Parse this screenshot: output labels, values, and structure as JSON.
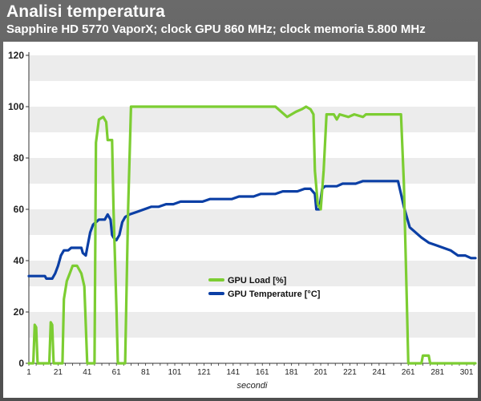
{
  "header": {
    "title": "Analisi temperatura",
    "subtitle": "Sapphire HD 5770 VaporX; clock GPU 860 MHz; clock memoria 5.800 MHz"
  },
  "colors": {
    "gpu_load": "#7ccd32",
    "gpu_temp": "#0b3fa5",
    "band": "#ececec",
    "frame": "#565656"
  },
  "chart_data": {
    "type": "line",
    "title": "Analisi temperatura",
    "subtitle": "Sapphire HD 5770 VaporX; clock GPU 860 MHz; clock memoria 5.800 MHz",
    "xlabel": "secondi",
    "ylabel": "",
    "xlim": [
      1,
      307
    ],
    "ylim": [
      0,
      120
    ],
    "x_ticks": [
      "1",
      "21",
      "41",
      "61",
      "81",
      "101",
      "121",
      "141",
      "161",
      "181",
      "201",
      "221",
      "241",
      "261",
      "281",
      "301"
    ],
    "y_ticks": [
      "0",
      "20",
      "40",
      "60",
      "80",
      "100",
      "120"
    ],
    "grid": "alternating horizontal bands",
    "legend_position": "center",
    "series": [
      {
        "name": "GPU Load [%]",
        "color": "#7ccd32",
        "points": [
          [
            1,
            0
          ],
          [
            4,
            0
          ],
          [
            5,
            15
          ],
          [
            6,
            14
          ],
          [
            7,
            0
          ],
          [
            15,
            0
          ],
          [
            16,
            16
          ],
          [
            17,
            15
          ],
          [
            18,
            0
          ],
          [
            21,
            0
          ],
          [
            24,
            0
          ],
          [
            25,
            25
          ],
          [
            27,
            32
          ],
          [
            29,
            35
          ],
          [
            31,
            38
          ],
          [
            34,
            38
          ],
          [
            37,
            35
          ],
          [
            39,
            30
          ],
          [
            40,
            15
          ],
          [
            41,
            0
          ],
          [
            46,
            0
          ],
          [
            47,
            86
          ],
          [
            49,
            95
          ],
          [
            52,
            96
          ],
          [
            54,
            94
          ],
          [
            55,
            87
          ],
          [
            58,
            87
          ],
          [
            59,
            60
          ],
          [
            61,
            22
          ],
          [
            62,
            0
          ],
          [
            67,
            0
          ],
          [
            69,
            60
          ],
          [
            71,
            100
          ],
          [
            110,
            100
          ],
          [
            170,
            100
          ],
          [
            176,
            97
          ],
          [
            178,
            96
          ],
          [
            184,
            98
          ],
          [
            188,
            99
          ],
          [
            191,
            100
          ],
          [
            194,
            99
          ],
          [
            196,
            97
          ],
          [
            197,
            75
          ],
          [
            199,
            62
          ],
          [
            201,
            60
          ],
          [
            203,
            75
          ],
          [
            205,
            97
          ],
          [
            210,
            97
          ],
          [
            212,
            95
          ],
          [
            214,
            97
          ],
          [
            220,
            96
          ],
          [
            224,
            97
          ],
          [
            230,
            96
          ],
          [
            232,
            97
          ],
          [
            256,
            97
          ],
          [
            258,
            70
          ],
          [
            260,
            25
          ],
          [
            261,
            0
          ],
          [
            270,
            0
          ],
          [
            271,
            3
          ],
          [
            275,
            3
          ],
          [
            276,
            0
          ],
          [
            307,
            0
          ]
        ]
      },
      {
        "name": "GPU Temperature [°C]",
        "color": "#0b3fa5",
        "points": [
          [
            1,
            34
          ],
          [
            12,
            34
          ],
          [
            13,
            33
          ],
          [
            17,
            33
          ],
          [
            19,
            35
          ],
          [
            21,
            38
          ],
          [
            23,
            42
          ],
          [
            25,
            44
          ],
          [
            28,
            44
          ],
          [
            30,
            45
          ],
          [
            33,
            45
          ],
          [
            37,
            45
          ],
          [
            38,
            43
          ],
          [
            40,
            42
          ],
          [
            41,
            45
          ],
          [
            43,
            51
          ],
          [
            45,
            54
          ],
          [
            47,
            55
          ],
          [
            49,
            56
          ],
          [
            53,
            56
          ],
          [
            55,
            58
          ],
          [
            57,
            56
          ],
          [
            58,
            50
          ],
          [
            59,
            49
          ],
          [
            61,
            48
          ],
          [
            63,
            50
          ],
          [
            65,
            55
          ],
          [
            67,
            57
          ],
          [
            70,
            58
          ],
          [
            75,
            59
          ],
          [
            80,
            60
          ],
          [
            85,
            61
          ],
          [
            90,
            61
          ],
          [
            95,
            62
          ],
          [
            100,
            62
          ],
          [
            105,
            63
          ],
          [
            110,
            63
          ],
          [
            115,
            63
          ],
          [
            120,
            63
          ],
          [
            125,
            64
          ],
          [
            130,
            64
          ],
          [
            135,
            64
          ],
          [
            140,
            64
          ],
          [
            145,
            65
          ],
          [
            150,
            65
          ],
          [
            155,
            65
          ],
          [
            160,
            66
          ],
          [
            170,
            66
          ],
          [
            175,
            67
          ],
          [
            180,
            67
          ],
          [
            185,
            67
          ],
          [
            190,
            68
          ],
          [
            194,
            68
          ],
          [
            197,
            66
          ],
          [
            198,
            60
          ],
          [
            200,
            60
          ],
          [
            202,
            68
          ],
          [
            204,
            69
          ],
          [
            208,
            69
          ],
          [
            212,
            69
          ],
          [
            216,
            70
          ],
          [
            220,
            70
          ],
          [
            225,
            70
          ],
          [
            230,
            71
          ],
          [
            240,
            71
          ],
          [
            250,
            71
          ],
          [
            254,
            71
          ],
          [
            256,
            66
          ],
          [
            258,
            61
          ],
          [
            260,
            57
          ],
          [
            262,
            53
          ],
          [
            266,
            51
          ],
          [
            270,
            49
          ],
          [
            275,
            47
          ],
          [
            280,
            46
          ],
          [
            285,
            45
          ],
          [
            290,
            44
          ],
          [
            295,
            42
          ],
          [
            300,
            42
          ],
          [
            304,
            41
          ],
          [
            307,
            41
          ]
        ]
      }
    ]
  }
}
